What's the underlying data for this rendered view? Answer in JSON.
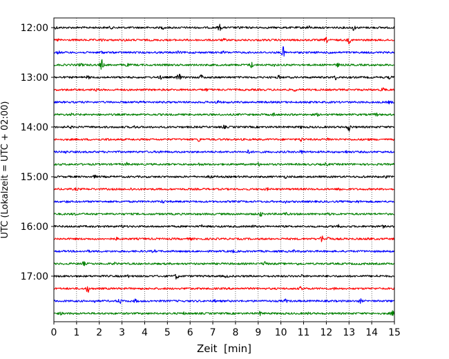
{
  "chart_data": {
    "type": "line",
    "xlabel": "Zeit  [min]",
    "ylabel": "UTC (Lokalzeit = UTC + 02:00)",
    "xlim": [
      0,
      15
    ],
    "xticks": [
      "0",
      "1",
      "2",
      "3",
      "4",
      "5",
      "6",
      "7",
      "8",
      "9",
      "10",
      "11",
      "12",
      "13",
      "14",
      "15"
    ],
    "yticks": [
      "12:00",
      "13:00",
      "14:00",
      "15:00",
      "16:00",
      "17:00"
    ],
    "row_start": "12:00",
    "row_interval_minutes": 15,
    "trace_colors": [
      "#000000",
      "#ff0000",
      "#0000ff",
      "#008000"
    ],
    "grid": "vertical dotted at each minute",
    "rows": [
      {
        "start": "12:00",
        "color": "#000000",
        "events": [
          [
            7.3,
            1.0
          ],
          [
            11.2,
            0.6
          ],
          [
            13.2,
            0.9
          ],
          [
            2.5,
            0.3
          ],
          [
            0.1,
            0.3
          ],
          [
            8.2,
            0.3
          ],
          [
            4.8,
            0.3
          ]
        ]
      },
      {
        "start": "12:15",
        "color": "#ff0000",
        "events": [
          [
            12.0,
            0.8
          ],
          [
            13.0,
            1.0
          ],
          [
            0.2,
            0.3
          ],
          [
            2.1,
            0.2
          ],
          [
            3.2,
            0.3
          ],
          [
            7.5,
            0.3
          ]
        ]
      },
      {
        "start": "12:30",
        "color": "#0000ff",
        "events": [
          [
            10.1,
            1.8
          ],
          [
            2.1,
            0.4
          ],
          [
            12.2,
            0.6
          ],
          [
            5.5,
            0.3
          ],
          [
            0.2,
            0.3
          ],
          [
            7.5,
            0.3
          ]
        ]
      },
      {
        "start": "12:45",
        "color": "#008000",
        "events": [
          [
            2.1,
            1.8
          ],
          [
            1.2,
            0.6
          ],
          [
            3.2,
            0.5
          ],
          [
            8.7,
            0.9
          ],
          [
            12.5,
            0.5
          ],
          [
            9.7,
            0.3
          ]
        ]
      },
      {
        "start": "13:00",
        "color": "#000000",
        "events": [
          [
            5.5,
            1.5
          ],
          [
            6.5,
            0.8
          ],
          [
            4.7,
            0.5
          ],
          [
            12.4,
            0.6
          ],
          [
            9.9,
            0.5
          ],
          [
            14.8,
            0.4
          ],
          [
            1.5,
            0.4
          ]
        ]
      },
      {
        "start": "13:15",
        "color": "#ff0000",
        "events": [
          [
            14.5,
            0.8
          ],
          [
            1.9,
            0.3
          ],
          [
            6.7,
            0.3
          ],
          [
            10.6,
            0.3
          ]
        ]
      },
      {
        "start": "13:30",
        "color": "#0000ff",
        "events": [
          [
            7.2,
            0.6
          ],
          [
            14.8,
            0.4
          ],
          [
            3.9,
            0.3
          ],
          [
            11.0,
            0.3
          ]
        ]
      },
      {
        "start": "13:45",
        "color": "#008000",
        "events": [
          [
            9.7,
            0.5
          ],
          [
            14.2,
            0.4
          ],
          [
            11.6,
            0.3
          ],
          [
            0.8,
            0.3
          ]
        ]
      },
      {
        "start": "14:00",
        "color": "#000000",
        "events": [
          [
            13.0,
            1.2
          ],
          [
            3.6,
            0.5
          ],
          [
            7.5,
            0.4
          ],
          [
            0.7,
            0.4
          ],
          [
            10.9,
            0.3
          ]
        ]
      },
      {
        "start": "14:15",
        "color": "#ff0000",
        "events": [
          [
            6.4,
            0.6
          ],
          [
            10.9,
            0.6
          ],
          [
            12.1,
            0.5
          ],
          [
            2.4,
            0.3
          ],
          [
            13.8,
            0.3
          ]
        ]
      },
      {
        "start": "14:30",
        "color": "#0000ff",
        "events": [
          [
            8.6,
            0.7
          ],
          [
            0.5,
            0.3
          ],
          [
            10.9,
            0.5
          ],
          [
            4.7,
            0.3
          ],
          [
            12.9,
            0.3
          ]
        ]
      },
      {
        "start": "14:45",
        "color": "#008000",
        "events": [
          [
            9.0,
            0.5
          ],
          [
            3.2,
            0.4
          ],
          [
            12.0,
            0.4
          ],
          [
            6.4,
            0.3
          ]
        ]
      },
      {
        "start": "15:00",
        "color": "#000000",
        "events": [
          [
            6.9,
            0.5
          ],
          [
            1.8,
            0.3
          ],
          [
            10.2,
            0.3
          ],
          [
            13.6,
            0.3
          ],
          [
            14.6,
            0.3
          ]
        ]
      },
      {
        "start": "15:15",
        "color": "#ff0000",
        "events": [
          [
            12.6,
            0.6
          ],
          [
            9.4,
            0.3
          ],
          [
            3.4,
            0.3
          ],
          [
            1.0,
            0.3
          ]
        ]
      },
      {
        "start": "15:30",
        "color": "#0000ff",
        "events": [
          [
            4.8,
            0.4
          ],
          [
            10.2,
            0.3
          ],
          [
            13.4,
            0.3
          ],
          [
            0.6,
            0.2
          ]
        ]
      },
      {
        "start": "15:45",
        "color": "#008000",
        "events": [
          [
            9.1,
            0.7
          ],
          [
            10.2,
            0.5
          ],
          [
            0.9,
            0.3
          ],
          [
            12.1,
            0.3
          ]
        ]
      },
      {
        "start": "16:00",
        "color": "#000000",
        "events": [
          [
            12.5,
            0.9
          ],
          [
            3.0,
            0.4
          ],
          [
            6.5,
            0.3
          ],
          [
            8.8,
            0.3
          ],
          [
            14.5,
            0.3
          ]
        ]
      },
      {
        "start": "16:15",
        "color": "#ff0000",
        "events": [
          [
            11.8,
            1.0
          ],
          [
            12.1,
            0.8
          ],
          [
            2.8,
            0.4
          ],
          [
            6.0,
            0.3
          ],
          [
            13.9,
            0.3
          ]
        ]
      },
      {
        "start": "16:30",
        "color": "#0000ff",
        "events": [
          [
            7.9,
            0.3
          ],
          [
            4.4,
            0.3
          ],
          [
            10.6,
            0.3
          ],
          [
            1.5,
            0.2
          ]
        ]
      },
      {
        "start": "16:45",
        "color": "#008000",
        "events": [
          [
            9.3,
            0.8
          ],
          [
            1.3,
            0.6
          ],
          [
            2.7,
            0.3
          ],
          [
            10.8,
            0.3
          ],
          [
            13.6,
            0.3
          ]
        ]
      },
      {
        "start": "17:00",
        "color": "#000000",
        "events": [
          [
            5.4,
            0.9
          ],
          [
            10.9,
            0.3
          ],
          [
            3.3,
            0.3
          ],
          [
            7.6,
            0.3
          ],
          [
            14.3,
            0.3
          ]
        ]
      },
      {
        "start": "17:15",
        "color": "#ff0000",
        "events": [
          [
            1.5,
            1.2
          ],
          [
            10.9,
            0.6
          ],
          [
            12.4,
            0.3
          ],
          [
            5.9,
            0.3
          ]
        ]
      },
      {
        "start": "17:30",
        "color": "#0000ff",
        "events": [
          [
            2.9,
            0.8
          ],
          [
            3.6,
            0.5
          ],
          [
            10.2,
            0.5
          ],
          [
            13.5,
            0.6
          ],
          [
            1.8,
            0.3
          ],
          [
            7.1,
            0.3
          ]
        ]
      },
      {
        "start": "17:45",
        "color": "#008000",
        "events": [
          [
            9.1,
            0.6
          ],
          [
            14.9,
            0.8
          ],
          [
            0.3,
            0.3
          ],
          [
            5.7,
            0.3
          ],
          [
            11.2,
            0.3
          ]
        ]
      }
    ]
  }
}
